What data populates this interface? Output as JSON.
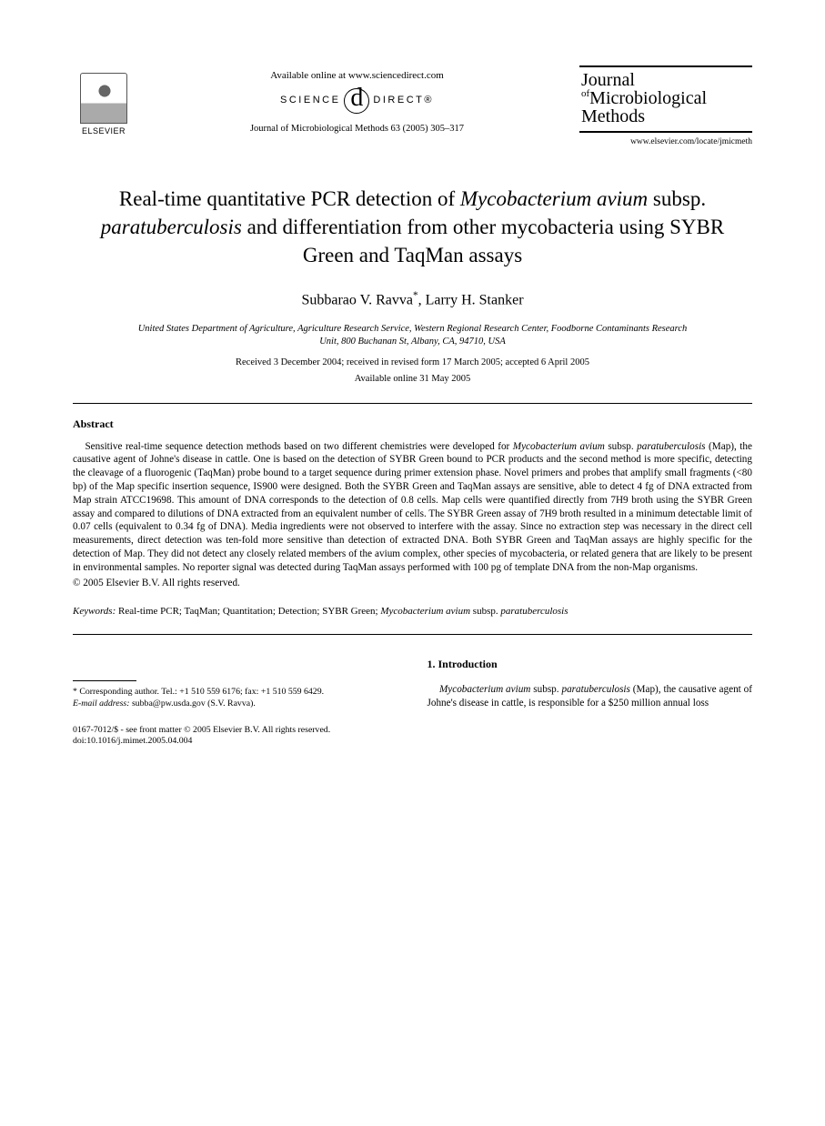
{
  "header": {
    "elsevier": "ELSEVIER",
    "available_online": "Available online at www.sciencedirect.com",
    "sd_left": "SCIENCE",
    "sd_right": "DIRECT®",
    "citation": "Journal of Microbiological Methods 63 (2005) 305–317",
    "journal_line1": "Journal",
    "journal_of": "of",
    "journal_line2": "Microbiological",
    "journal_line3": "Methods",
    "journal_url": "www.elsevier.com/locate/jmicmeth"
  },
  "title_parts": {
    "p1": "Real-time quantitative PCR detection of ",
    "p2": "Mycobacterium avium",
    "p3": " subsp. ",
    "p4": "paratuberculosis",
    "p5": " and differentiation from other mycobacteria using SYBR Green and TaqMan assays"
  },
  "authors": {
    "a1": "Subbarao V. Ravva",
    "a1_mark": "*",
    "sep": ", ",
    "a2": "Larry H. Stanker"
  },
  "affiliation": "United States Department of Agriculture, Agriculture Research Service, Western Regional Research Center, Foodborne Contaminants Research Unit, 800 Buchanan St, Albany, CA, 94710, USA",
  "dates": {
    "line1": "Received 3 December 2004; received in revised form 17 March 2005; accepted 6 April 2005",
    "line2": "Available online 31 May 2005"
  },
  "abstract": {
    "heading": "Abstract",
    "seg1": "Sensitive real-time sequence detection methods based on two different chemistries were developed for ",
    "seg2": "Mycobacterium avium",
    "seg3": " subsp. ",
    "seg4": "paratuberculosis",
    "seg5": " (Map), the causative agent of Johne's disease in cattle. One is based on the detection of SYBR Green bound to PCR products and the second method is more specific, detecting the cleavage of a fluorogenic (TaqMan) probe bound to a target sequence during primer extension phase. Novel primers and probes that amplify small fragments (<80 bp) of the Map specific insertion sequence, IS900 were designed. Both the SYBR Green and TaqMan assays are sensitive, able to detect 4 fg of DNA extracted from Map strain ATCC19698. This amount of DNA corresponds to the detection of 0.8 cells. Map cells were quantified directly from 7H9 broth using the SYBR Green assay and compared to dilutions of DNA extracted from an equivalent number of cells. The SYBR Green assay of 7H9 broth resulted in a minimum detectable limit of 0.07 cells (equivalent to 0.34 fg of DNA). Media ingredients were not observed to interfere with the assay. Since no extraction step was necessary in the direct cell measurements, direct detection was ten-fold more sensitive than detection of extracted DNA. Both SYBR Green and TaqMan assays are highly specific for the detection of Map. They did not detect any closely related members of the avium complex, other species of mycobacteria, or related genera that are likely to be present in environmental samples. No reporter signal was detected during TaqMan assays performed with 100 pg of template DNA from the non-Map organisms.",
    "copyright": "© 2005 Elsevier B.V. All rights reserved."
  },
  "keywords": {
    "label": "Keywords:",
    "text_a": " Real-time PCR; TaqMan; Quantitation; Detection; SYBR Green; ",
    "text_b": "Mycobacterium avium",
    "text_c": " subsp. ",
    "text_d": "paratuberculosis"
  },
  "footnotes": {
    "corr_label": "* Corresponding author. Tel.: +1 510 559 6176; fax: +1 510 559 6429.",
    "email_label": "E-mail address:",
    "email_value": " subba@pw.usda.gov (S.V. Ravva)."
  },
  "intro": {
    "heading": "1. Introduction",
    "seg1": "Mycobacterium avium",
    "seg2": " subsp. ",
    "seg3": "paratuberculosis",
    "seg4": " (Map), the causative agent of Johne's disease in cattle, is responsible for a $250 million annual loss"
  },
  "doi": {
    "line1": "0167-7012/$ - see front matter © 2005 Elsevier B.V. All rights reserved.",
    "line2": "doi:10.1016/j.mimet.2005.04.004"
  }
}
